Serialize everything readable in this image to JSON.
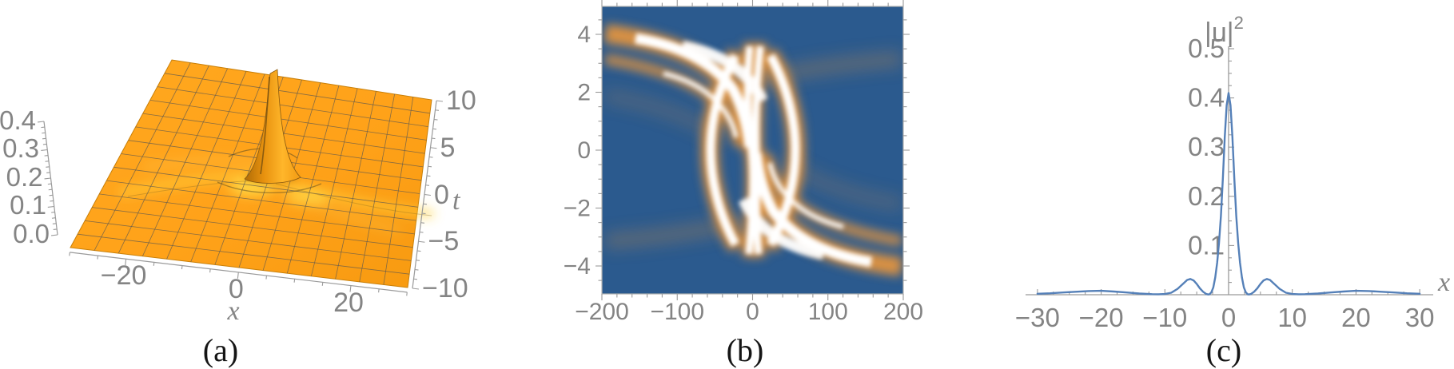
{
  "figure": {
    "background": "#ffffff",
    "captions": [
      "(a)",
      "(b)",
      "(c)"
    ]
  },
  "colors": {
    "surface_orange": "#ffa219",
    "surface_orange_dark": "#f5940e",
    "grid_line": "#5f5a50",
    "density_blue": "#2b5a8e",
    "band_orange": "#e2943f",
    "band_white": "#ffffff",
    "curve_blue": "#5580b8",
    "label_gray": "#848484",
    "axis_gray": "#9a9a9a",
    "glow_yellow": "#ffd23f"
  },
  "chart_data": [
    {
      "panel": "a",
      "type": "surface",
      "xlabel": "x",
      "tlabel": "t",
      "x_ticks": [
        "−20",
        "0",
        "20"
      ],
      "t_ticks": [
        "10",
        "5",
        "0",
        "−5",
        "−10"
      ],
      "z_ticks": [
        "0.4",
        "0.3",
        "0.2",
        "0.1",
        "0.0"
      ],
      "x_range": [
        -30,
        30
      ],
      "t_range": [
        -10,
        10
      ],
      "z_range": [
        0.0,
        0.4
      ],
      "description": "Orange 3D surface, flat background near 0 with a single narrow rogue-wave peak of height ~0.4 at (x,t)=(0,0) and faint radiating ridge arms; dark mesh grid of ~14x14 cells"
    },
    {
      "panel": "b",
      "type": "heatmap",
      "x_ticks": [
        "−200",
        "−100",
        "0",
        "100",
        "200"
      ],
      "y_ticks": [
        "4",
        "2",
        "0",
        "−2",
        "−4"
      ],
      "x_range": [
        -200,
        200
      ],
      "y_range": [
        -5,
        5
      ],
      "colormap": "dark blue background → orange → white bright bands",
      "description": "Density plot: point-symmetric X/butterfly interaction pattern; bright white band entering from upper-left near y=4 curving into centre, mirror band exiting lower-right near y=-4, two white crescents facing each other around x=±50 and a bright near-vertical double column at the centre"
    },
    {
      "panel": "c",
      "type": "line",
      "xlabel": "x",
      "ylabel_base": "|u|",
      "ylabel_exp": "2",
      "x_ticks": [
        "−30",
        "−20",
        "−10",
        "0",
        "10",
        "20",
        "30"
      ],
      "y_ticks": [
        "0.5",
        "0.4",
        "0.3",
        "0.2",
        "0.1"
      ],
      "x_range": [
        -32,
        32
      ],
      "y_range": [
        0,
        0.5
      ],
      "peak": {
        "x": 0,
        "y": 0.41
      },
      "points": [
        [
          -30,
          0.002
        ],
        [
          -28,
          0.003
        ],
        [
          -26,
          0.0045
        ],
        [
          -24,
          0.006
        ],
        [
          -22,
          0.0075
        ],
        [
          -20,
          0.008
        ],
        [
          -18,
          0.0065
        ],
        [
          -16,
          0.0045
        ],
        [
          -14,
          0.0025
        ],
        [
          -12,
          0.0012
        ],
        [
          -11,
          0.001
        ],
        [
          -10,
          0.0015
        ],
        [
          -9,
          0.004
        ],
        [
          -8,
          0.012
        ],
        [
          -7,
          0.024
        ],
        [
          -6.5,
          0.03
        ],
        [
          -6,
          0.032
        ],
        [
          -5.5,
          0.029
        ],
        [
          -5,
          0.022
        ],
        [
          -4.5,
          0.013
        ],
        [
          -4,
          0.006
        ],
        [
          -3.5,
          0.0015
        ],
        [
          -3.2,
          0.0005
        ],
        [
          -3,
          0.001
        ],
        [
          -2.7,
          0.005
        ],
        [
          -2.4,
          0.015
        ],
        [
          -2.1,
          0.035
        ],
        [
          -1.8,
          0.065
        ],
        [
          -1.5,
          0.105
        ],
        [
          -1.2,
          0.16
        ],
        [
          -0.9,
          0.235
        ],
        [
          -0.6,
          0.32
        ],
        [
          -0.3,
          0.385
        ],
        [
          0,
          0.41
        ],
        [
          0.3,
          0.385
        ],
        [
          0.6,
          0.32
        ],
        [
          0.9,
          0.235
        ],
        [
          1.2,
          0.16
        ],
        [
          1.5,
          0.105
        ],
        [
          1.8,
          0.065
        ],
        [
          2.1,
          0.035
        ],
        [
          2.4,
          0.015
        ],
        [
          2.7,
          0.005
        ],
        [
          3,
          0.001
        ],
        [
          3.2,
          0.0005
        ],
        [
          3.5,
          0.0015
        ],
        [
          4,
          0.006
        ],
        [
          4.5,
          0.013
        ],
        [
          5,
          0.022
        ],
        [
          5.5,
          0.029
        ],
        [
          6,
          0.032
        ],
        [
          6.5,
          0.03
        ],
        [
          7,
          0.024
        ],
        [
          8,
          0.012
        ],
        [
          9,
          0.004
        ],
        [
          10,
          0.0015
        ],
        [
          11,
          0.001
        ],
        [
          12,
          0.0012
        ],
        [
          14,
          0.0025
        ],
        [
          16,
          0.0045
        ],
        [
          18,
          0.0065
        ],
        [
          20,
          0.008
        ],
        [
          22,
          0.0075
        ],
        [
          24,
          0.006
        ],
        [
          26,
          0.0045
        ],
        [
          28,
          0.003
        ],
        [
          30,
          0.002
        ]
      ]
    }
  ]
}
